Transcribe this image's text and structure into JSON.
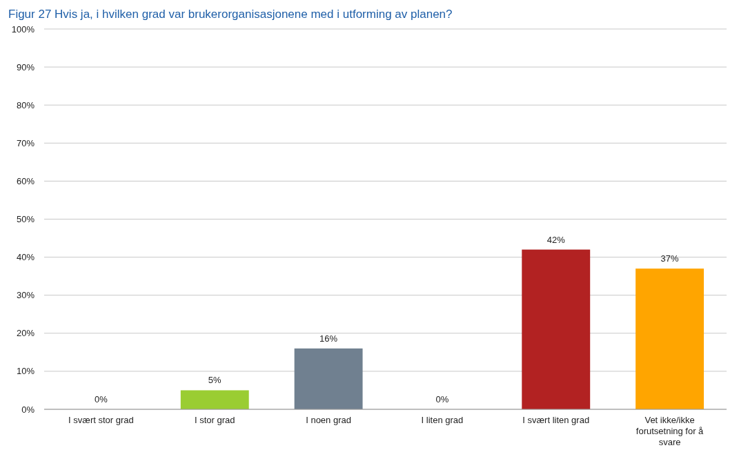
{
  "chart_data": {
    "type": "bar",
    "title": "Figur 27 Hvis ja, i hvilken grad var brukerorganisasjonene med i utforming av planen?",
    "categories": [
      "I svært stor grad",
      "I stor grad",
      "I noen grad",
      "I liten grad",
      "I svært liten grad",
      "Vet ikke/ikke forutsetning for å svare"
    ],
    "values": [
      0,
      5,
      16,
      0,
      42,
      37
    ],
    "colors": [
      "#4472c4",
      "#9acd32",
      "#708090",
      "#4472c4",
      "#b22222",
      "#ffa500"
    ],
    "ylim": [
      0,
      100
    ],
    "yticks": [
      {
        "value": 0,
        "label": "0%"
      },
      {
        "value": 10,
        "label": "10%"
      },
      {
        "value": 20,
        "label": "20%"
      },
      {
        "value": 30,
        "label": "30%"
      },
      {
        "value": 40,
        "label": "40%"
      },
      {
        "value": 50,
        "label": "50%"
      },
      {
        "value": 60,
        "label": "60%"
      },
      {
        "value": 70,
        "label": "70%"
      },
      {
        "value": 80,
        "label": "80%"
      },
      {
        "value": 90,
        "label": "90%"
      },
      {
        "value": 100,
        "label": "100%"
      }
    ],
    "value_labels": [
      "0%",
      "5%",
      "16%",
      "0%",
      "42%",
      "37%"
    ],
    "grid": true
  }
}
